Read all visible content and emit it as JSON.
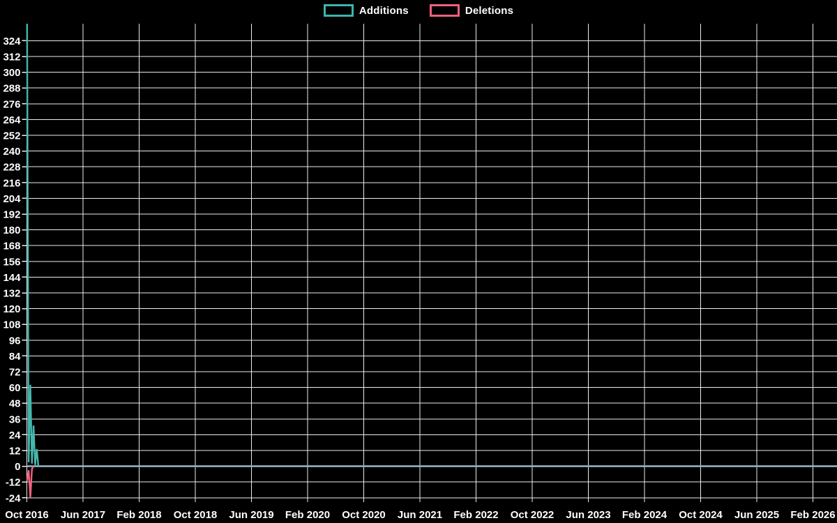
{
  "page": {
    "background": "#000000",
    "text_color": "#ffffff"
  },
  "legend": {
    "position": "top-center",
    "items": [
      {
        "label": "Additions",
        "color": "#3cb5ab"
      },
      {
        "label": "Deletions",
        "color": "#f1607d"
      }
    ]
  },
  "chart_data": {
    "type": "line",
    "title": "",
    "xlabel": "",
    "ylabel": "",
    "grid": true,
    "grid_color": "#ededed",
    "background": "#000000",
    "text_color": "#ffffff",
    "zero_line_color": "#8fb2bd",
    "ylim": [
      -27,
      337
    ],
    "y_tick_step": 12,
    "y_ticks": [
      -24,
      -12,
      0,
      12,
      24,
      36,
      48,
      60,
      72,
      84,
      96,
      108,
      120,
      132,
      144,
      156,
      168,
      180,
      192,
      204,
      216,
      228,
      240,
      252,
      264,
      276,
      288,
      300,
      312,
      324
    ],
    "x_start_date": "2016-10-01",
    "x_tick_step_months": 8,
    "x_tick_labels": [
      "Oct 2016",
      "Jun 2017",
      "Feb 2018",
      "Oct 2018",
      "Jun 2019",
      "Feb 2020",
      "Oct 2020",
      "Jun 2021",
      "Feb 2022",
      "Oct 2022",
      "Jun 2023",
      "Feb 2024",
      "Oct 2024",
      "Jun 2025",
      "Feb 2026"
    ],
    "notes": "Weekly additions/deletions activity; only Oct-Nov 2016 has non-zero values, flat zero line through Feb 2026. Additions peak is clipped at the top of the plot (above the 324 gridline).",
    "series": [
      {
        "name": "Additions",
        "color": "#45b8ae",
        "peak_clipped_at_plot_top": true,
        "points": [
          [
            "2016-10-02",
            337
          ],
          [
            "2016-10-09",
            3
          ],
          [
            "2016-10-16",
            62
          ],
          [
            "2016-10-23",
            2
          ],
          [
            "2016-10-30",
            31
          ],
          [
            "2016-11-06",
            1
          ],
          [
            "2016-11-13",
            13
          ],
          [
            "2016-11-20",
            0
          ]
        ],
        "zero_after": true
      },
      {
        "name": "Deletions",
        "color": "#f2627f",
        "points": [
          [
            "2016-10-02",
            -11
          ],
          [
            "2016-10-09",
            -3
          ],
          [
            "2016-10-16",
            -24
          ],
          [
            "2016-10-23",
            -2
          ],
          [
            "2016-10-30",
            0
          ]
        ],
        "zero_after": true
      }
    ]
  }
}
